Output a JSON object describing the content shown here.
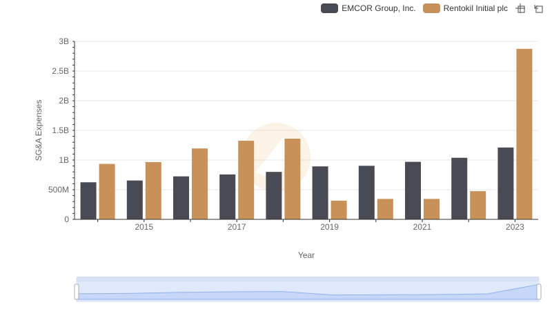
{
  "chart_data": {
    "type": "bar",
    "x": [
      2014,
      2015,
      2016,
      2017,
      2018,
      2019,
      2020,
      2021,
      2022,
      2023
    ],
    "x_tick_labels": [
      "2015",
      "2017",
      "2019",
      "2021",
      "2023"
    ],
    "xlabel": "Year",
    "ylabel": "SG&A Expenses",
    "ylim": [
      0,
      3000000000
    ],
    "y_tick_labels": [
      "0",
      "500M",
      "1B",
      "1.5B",
      "2B",
      "2.5B",
      "3B"
    ],
    "grid": true,
    "legend_position": "top-right",
    "series": [
      {
        "name": "EMCOR Group, Inc.",
        "color": "#4a4a55",
        "values": [
          625000000,
          655000000,
          725000000,
          757000000,
          800000000,
          893000000,
          903000000,
          970000000,
          1038000000,
          1211000000
        ]
      },
      {
        "name": "Rentokil Initial plc",
        "color": "#c9915a",
        "values": [
          935000000,
          965000000,
          1195000000,
          1325000000,
          1360000000,
          315000000,
          345000000,
          345000000,
          475000000,
          2875000000
        ]
      }
    ]
  },
  "colors": {
    "grid": "#e6e6e6",
    "axis": "#333333",
    "slider_fill": "#dce6fb",
    "slider_border": "#c8d4ee",
    "slider_line": "#8fb0ec"
  },
  "icons": [
    "zoom-icon",
    "restore-icon"
  ]
}
